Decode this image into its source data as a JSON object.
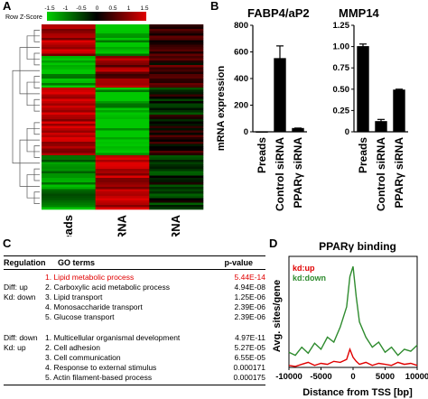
{
  "panels": {
    "a": "A",
    "b": "B",
    "c": "C",
    "d": "D"
  },
  "heatmap": {
    "key_label": "Row Z-Score",
    "scale_ticks": [
      "-1.5",
      "-1",
      "-0.5",
      "0",
      "0.5",
      "1",
      "1.5"
    ],
    "columns": [
      "Preads",
      "Control siRNA",
      "PPARγ siRNA"
    ],
    "colors": {
      "low": "#00c800",
      "mid": "#000000",
      "high": "#e00000"
    }
  },
  "chart_data": [
    {
      "type": "bar",
      "title": "FABP4/aP2",
      "ylabel": "mRNA expression",
      "categories": [
        "Preads",
        "Control siRNA",
        "PPARγ siRNA"
      ],
      "values": [
        0.3,
        550,
        25
      ],
      "errors": [
        0,
        95,
        3
      ],
      "ylim": [
        0,
        800
      ],
      "yticks": [
        "0",
        "200",
        "400",
        "600",
        "800"
      ]
    },
    {
      "type": "bar",
      "title": "MMP14",
      "categories": [
        "Preads",
        "Control siRNA",
        "PPARγ siRNA"
      ],
      "values": [
        1.0,
        0.12,
        0.49
      ],
      "errors": [
        0.03,
        0.025,
        0.01
      ],
      "ylim": [
        0,
        1.25
      ],
      "yticks": [
        "0",
        "0.25",
        "0.50",
        "0.75",
        "1.00",
        "1.25"
      ]
    },
    {
      "type": "line",
      "title": "PPARγ binding",
      "xlabel": "Distance from TSS [bp]",
      "ylabel": "Avg. sites/gene",
      "xlim": [
        -10000,
        10000
      ],
      "xticks": [
        "-10000",
        "-5000",
        "0",
        "5000",
        "10000"
      ],
      "series": [
        {
          "name": "kd:up",
          "color": "#e00000",
          "x": [
            -10000,
            -9000,
            -8000,
            -7000,
            -6000,
            -5000,
            -4000,
            -3000,
            -2000,
            -1000,
            -500,
            0,
            500,
            1000,
            2000,
            3000,
            4000,
            5000,
            6000,
            7000,
            8000,
            9000,
            10000
          ],
          "y": [
            0.02,
            0.01,
            0.03,
            0.05,
            0.02,
            0.04,
            0.03,
            0.06,
            0.05,
            0.08,
            0.18,
            0.1,
            0.06,
            0.03,
            0.05,
            0.02,
            0.04,
            0.03,
            0.02,
            0.05,
            0.03,
            0.04,
            0.02
          ]
        },
        {
          "name": "kd:down",
          "color": "#2e8b2e",
          "x": [
            -10000,
            -9000,
            -8000,
            -7000,
            -6000,
            -5000,
            -4000,
            -3000,
            -2000,
            -1000,
            -500,
            0,
            500,
            1000,
            2000,
            3000,
            4000,
            5000,
            6000,
            7000,
            8000,
            9000,
            10000
          ],
          "y": [
            0.15,
            0.12,
            0.2,
            0.14,
            0.24,
            0.18,
            0.3,
            0.25,
            0.4,
            0.6,
            0.9,
            1.0,
            0.7,
            0.45,
            0.3,
            0.2,
            0.25,
            0.15,
            0.2,
            0.12,
            0.18,
            0.16,
            0.22
          ]
        }
      ]
    },
    {
      "type": "table",
      "columns": [
        "Regulation",
        "GO terms",
        "p-value"
      ],
      "groups": [
        {
          "label_lines": [
            "Diff: up",
            "Kd: down"
          ],
          "rows": [
            {
              "term": "1. Lipid metabolic process",
              "p": "5.44E-14",
              "highlight": true
            },
            {
              "term": "2. Carboxylic acid metabolic process",
              "p": "4.94E-08"
            },
            {
              "term": "3. Lipid transport",
              "p": "1.25E-06"
            },
            {
              "term": "4. Monosaccharide transport",
              "p": "2.39E-06"
            },
            {
              "term": "5. Glucose transport",
              "p": "2.39E-06"
            }
          ]
        },
        {
          "label_lines": [
            "Diff: down",
            "Kd: up"
          ],
          "rows": [
            {
              "term": "1. Multicellular organismal development",
              "p": "4.97E-11"
            },
            {
              "term": "2. Cell adhesion",
              "p": "5.27E-05"
            },
            {
              "term": "3. Cell communication",
              "p": "6.55E-05"
            },
            {
              "term": "4. Response to external stimulus",
              "p": "0.000171"
            },
            {
              "term": "5. Actin filament-based process",
              "p": "0.000175"
            }
          ]
        }
      ]
    }
  ]
}
